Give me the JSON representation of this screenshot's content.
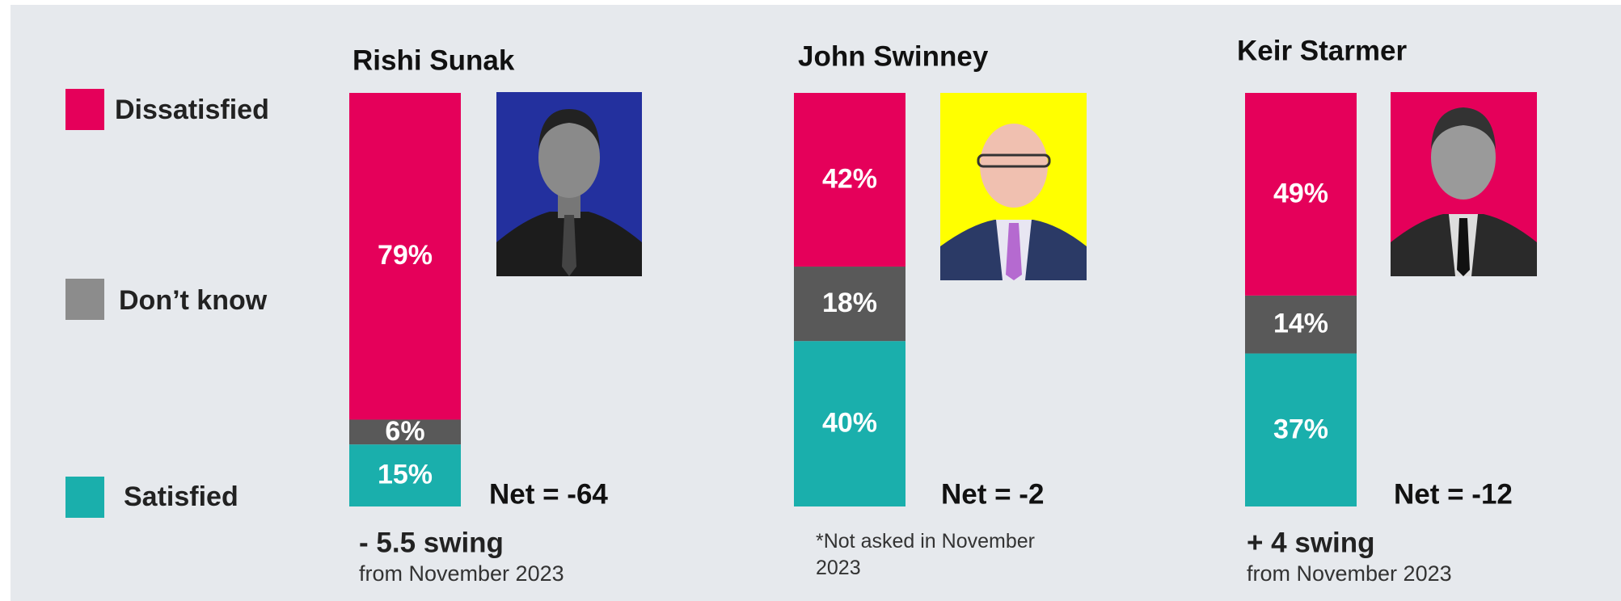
{
  "chart_data": {
    "type": "bar",
    "stacked": true,
    "categories": [
      "Rishi Sunak",
      "John Swinney",
      "Keir Starmer"
    ],
    "series": [
      {
        "name": "Dissatisfied",
        "color": "#e5005a",
        "values": [
          79,
          42,
          49
        ],
        "value_labels": [
          "79%",
          "42%",
          "49%"
        ]
      },
      {
        "name": "Don’t know",
        "color": "#595959",
        "values": [
          6,
          18,
          14
        ],
        "value_labels": [
          "6%",
          "18%",
          "14%"
        ]
      },
      {
        "name": "Satisfied",
        "color": "#1aafac",
        "values": [
          15,
          40,
          37
        ],
        "value_labels": [
          "15%",
          "40%",
          "37%"
        ]
      }
    ],
    "net_labels": [
      "Net = -64",
      "Net = -2",
      "Net = -12"
    ],
    "swing_labels": [
      "- 5.5 swing",
      null,
      "+ 4 swing"
    ],
    "swing_notes": [
      "from November 2023",
      "*Not asked in November 2023",
      "from November 2023"
    ]
  }
}
